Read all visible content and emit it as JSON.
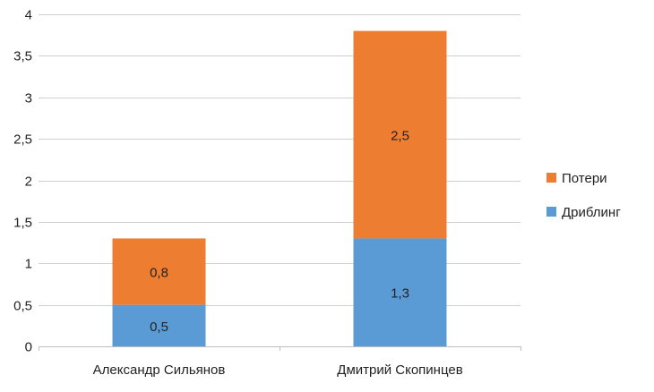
{
  "chart_data": {
    "type": "bar",
    "stacked": true,
    "categories": [
      "Александр Сильянов",
      "Дмитрий Скопинцев"
    ],
    "series": [
      {
        "name": "Дриблинг",
        "values": [
          0.5,
          1.3
        ],
        "labels": [
          "0,5",
          "1,3"
        ],
        "color": "#5B9BD5"
      },
      {
        "name": "Потери",
        "values": [
          0.8,
          2.5
        ],
        "labels": [
          "0,8",
          "2,5"
        ],
        "color": "#ED7D31"
      }
    ],
    "ylim": [
      0,
      4
    ],
    "yticks": [
      0,
      0.5,
      1,
      1.5,
      2,
      2.5,
      3,
      3.5,
      4
    ],
    "ytick_labels": [
      "0",
      "0,5",
      "1",
      "1,5",
      "2",
      "2,5",
      "3",
      "3,5",
      "4"
    ],
    "grid": true,
    "legend_position": "right",
    "legend_order": [
      "Потери",
      "Дриблинг"
    ],
    "title": "",
    "xlabel": "",
    "ylabel": ""
  }
}
